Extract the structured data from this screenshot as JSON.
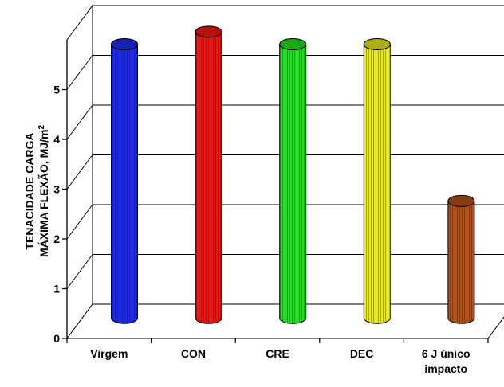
{
  "chart_data": {
    "type": "bar",
    "categories": [
      "Virgem",
      "CON",
      "CRE",
      "DEC",
      "6 J único impacto"
    ],
    "category_lines": [
      [
        "Virgem"
      ],
      [
        "CON"
      ],
      [
        "CRE"
      ],
      [
        "DEC"
      ],
      [
        "6 J único",
        "impacto"
      ]
    ],
    "values": [
      5.5,
      5.75,
      5.5,
      5.5,
      2.35
    ],
    "colors": [
      "#1f2cf0",
      "#f01616",
      "#22e022",
      "#e8e81a",
      "#b4501a"
    ],
    "ylabel_lines": [
      "TENACIDADE CARGA",
      "MÁXIMA FLEXÃO, MJ/m"
    ],
    "ylabel_sup": "2",
    "yticks": [
      "0",
      "1",
      "2",
      "3",
      "4",
      "5"
    ],
    "ylim": [
      0,
      6
    ],
    "grid": true,
    "style": "3d-cylinder"
  }
}
